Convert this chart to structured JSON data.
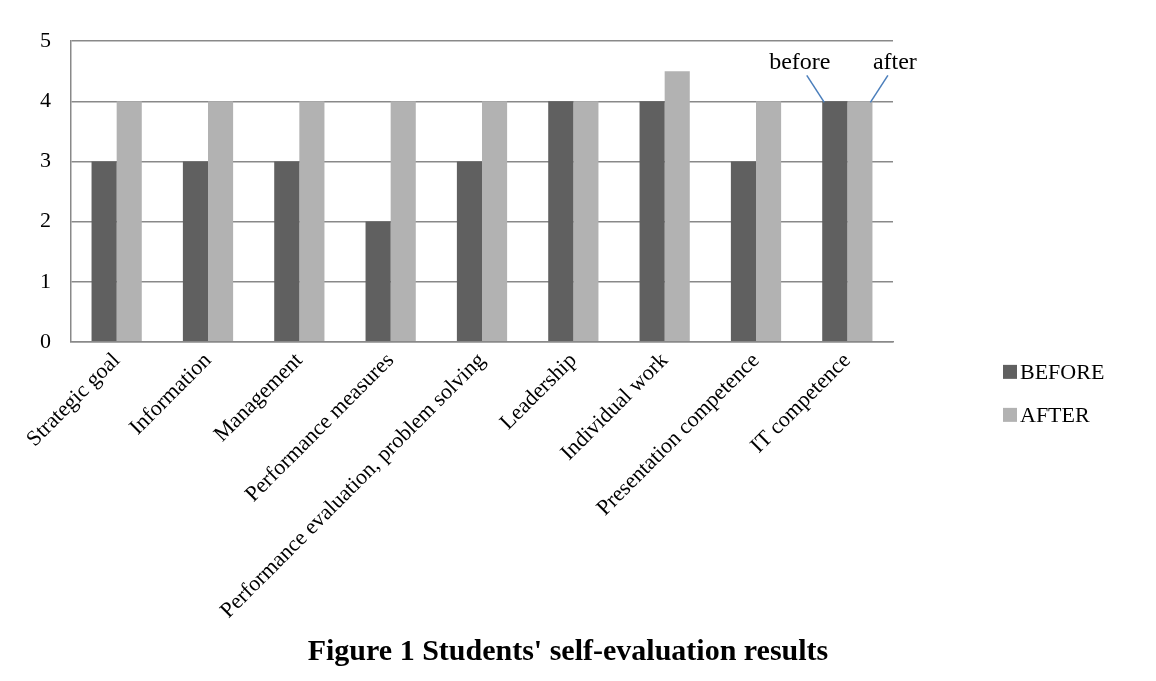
{
  "chart_data": {
    "type": "bar",
    "title": "Figure 1 Students' self-evaluation results",
    "categories": [
      "Strategic goal",
      "Information",
      "Management",
      "Performance measures",
      "Performance evaluation, problem solving",
      "Leadership",
      "Individual work",
      "Presentation competence",
      "IT competence"
    ],
    "series": [
      {
        "name": "BEFORE",
        "color": "#606060",
        "values": [
          3,
          3,
          3,
          2,
          3,
          4,
          4,
          3,
          4
        ]
      },
      {
        "name": "AFTER",
        "color": "#b2b2b2",
        "values": [
          4,
          4,
          4,
          4,
          4,
          4,
          4.5,
          4,
          4
        ]
      }
    ],
    "ylim": [
      0,
      5
    ],
    "yticks": [
      0,
      1,
      2,
      3,
      4,
      5
    ],
    "grid": "y",
    "legend": "right",
    "annotations": [
      {
        "text": "before",
        "x": "IT competence",
        "y": 4
      },
      {
        "text": "after",
        "x": "IT competence",
        "y": 4
      }
    ]
  }
}
